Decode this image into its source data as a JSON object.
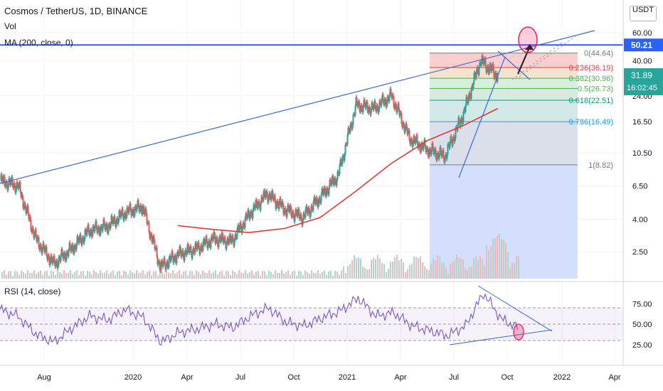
{
  "header": {
    "title": "Cosmos / TetherUS, 1D, BINANCE",
    "vol_label": "Vol",
    "ma_label": "MA (200, close, 0)",
    "currency": "USDT"
  },
  "rsi_label": "RSI (14, close)",
  "colors": {
    "price_up": "#26a69a",
    "price_down": "#ef5350",
    "ma": "#e53935",
    "trendline": "#3d6ad6",
    "hline": "#2962ff",
    "rsi": "#7e57c2",
    "rsi_band": "#7e57c2",
    "marker": "#e91e63"
  },
  "price_axis": [
    "60.00",
    "40.00",
    "24.00",
    "16.50",
    "10.50",
    "6.50",
    "4.00",
    "2.50"
  ],
  "price_badges": [
    {
      "label": "50.21",
      "bg": "#2962ff"
    },
    {
      "label": "31.89\n16:02:45",
      "bg": "#26a69a"
    }
  ],
  "rsi_axis": [
    "75.00",
    "50.00",
    "25.00"
  ],
  "time_axis": [
    "Aug",
    "2020",
    "Apr",
    "Jul",
    "Oct",
    "2021",
    "Apr",
    "Jul",
    "Oct",
    "2022",
    "Apr"
  ],
  "fib_levels": [
    {
      "label": "0(44.64)",
      "color": "#787b86"
    },
    {
      "label": "0.236(36.19)",
      "color": "#f23645"
    },
    {
      "label": "0.382(30.96)",
      "color": "#4caf50"
    },
    {
      "label": "0.5(26.73)",
      "color": "#4caf50"
    },
    {
      "label": "0.618(22.51)",
      "color": "#089981"
    },
    {
      "label": "0.786(16.49)",
      "color": "#2196f3"
    },
    {
      "label": "1(8.82)",
      "color": "#787b86"
    }
  ],
  "chart_data": {
    "type": "line",
    "title": "Cosmos / TetherUS, 1D, BINANCE",
    "scale": "log",
    "ylim": [
      2.0,
      75.0
    ],
    "fib_retracement": {
      "levels": [
        0,
        0.236,
        0.382,
        0.5,
        0.618,
        0.786,
        1
      ],
      "prices": [
        44.64,
        36.19,
        30.96,
        26.73,
        22.51,
        16.49,
        8.82
      ]
    },
    "horizontal_line": 50.21,
    "last_price": 31.89,
    "price_series": {
      "dates": [
        "2019-06",
        "2019-07",
        "2019-08",
        "2019-09",
        "2019-10",
        "2019-11",
        "2019-12",
        "2020-01",
        "2020-02",
        "2020-03",
        "2020-04",
        "2020-05",
        "2020-06",
        "2020-07",
        "2020-08",
        "2020-09",
        "2020-10",
        "2020-11",
        "2020-12",
        "2021-01",
        "2021-02",
        "2021-03",
        "2021-04",
        "2021-05",
        "2021-06",
        "2021-07",
        "2021-08",
        "2021-09",
        "2021-10"
      ],
      "values": [
        7.0,
        6.5,
        3.0,
        2.1,
        2.6,
        3.4,
        3.6,
        4.4,
        4.8,
        2.0,
        2.4,
        2.6,
        3.0,
        2.9,
        4.3,
        5.8,
        4.6,
        4.1,
        5.5,
        7.6,
        21.0,
        20.0,
        24.0,
        13.0,
        11.0,
        10.0,
        18.0,
        40.0,
        31.9
      ]
    },
    "ma200": {
      "dates": [
        "2020-04",
        "2020-06",
        "2020-08",
        "2020-10",
        "2020-12",
        "2021-02",
        "2021-04",
        "2021-06",
        "2021-08",
        "2021-10"
      ],
      "values": [
        3.65,
        3.45,
        3.3,
        3.5,
        4.1,
        6.0,
        9.0,
        12.5,
        15.5,
        20.0
      ]
    },
    "rsi_series": {
      "values": [
        68,
        60,
        38,
        28,
        45,
        60,
        55,
        68,
        58,
        28,
        40,
        44,
        50,
        46,
        60,
        70,
        52,
        48,
        58,
        66,
        82,
        60,
        64,
        48,
        42,
        36,
        48,
        88,
        56,
        45
      ]
    },
    "rsi_bands": [
      70,
      50,
      30
    ]
  }
}
